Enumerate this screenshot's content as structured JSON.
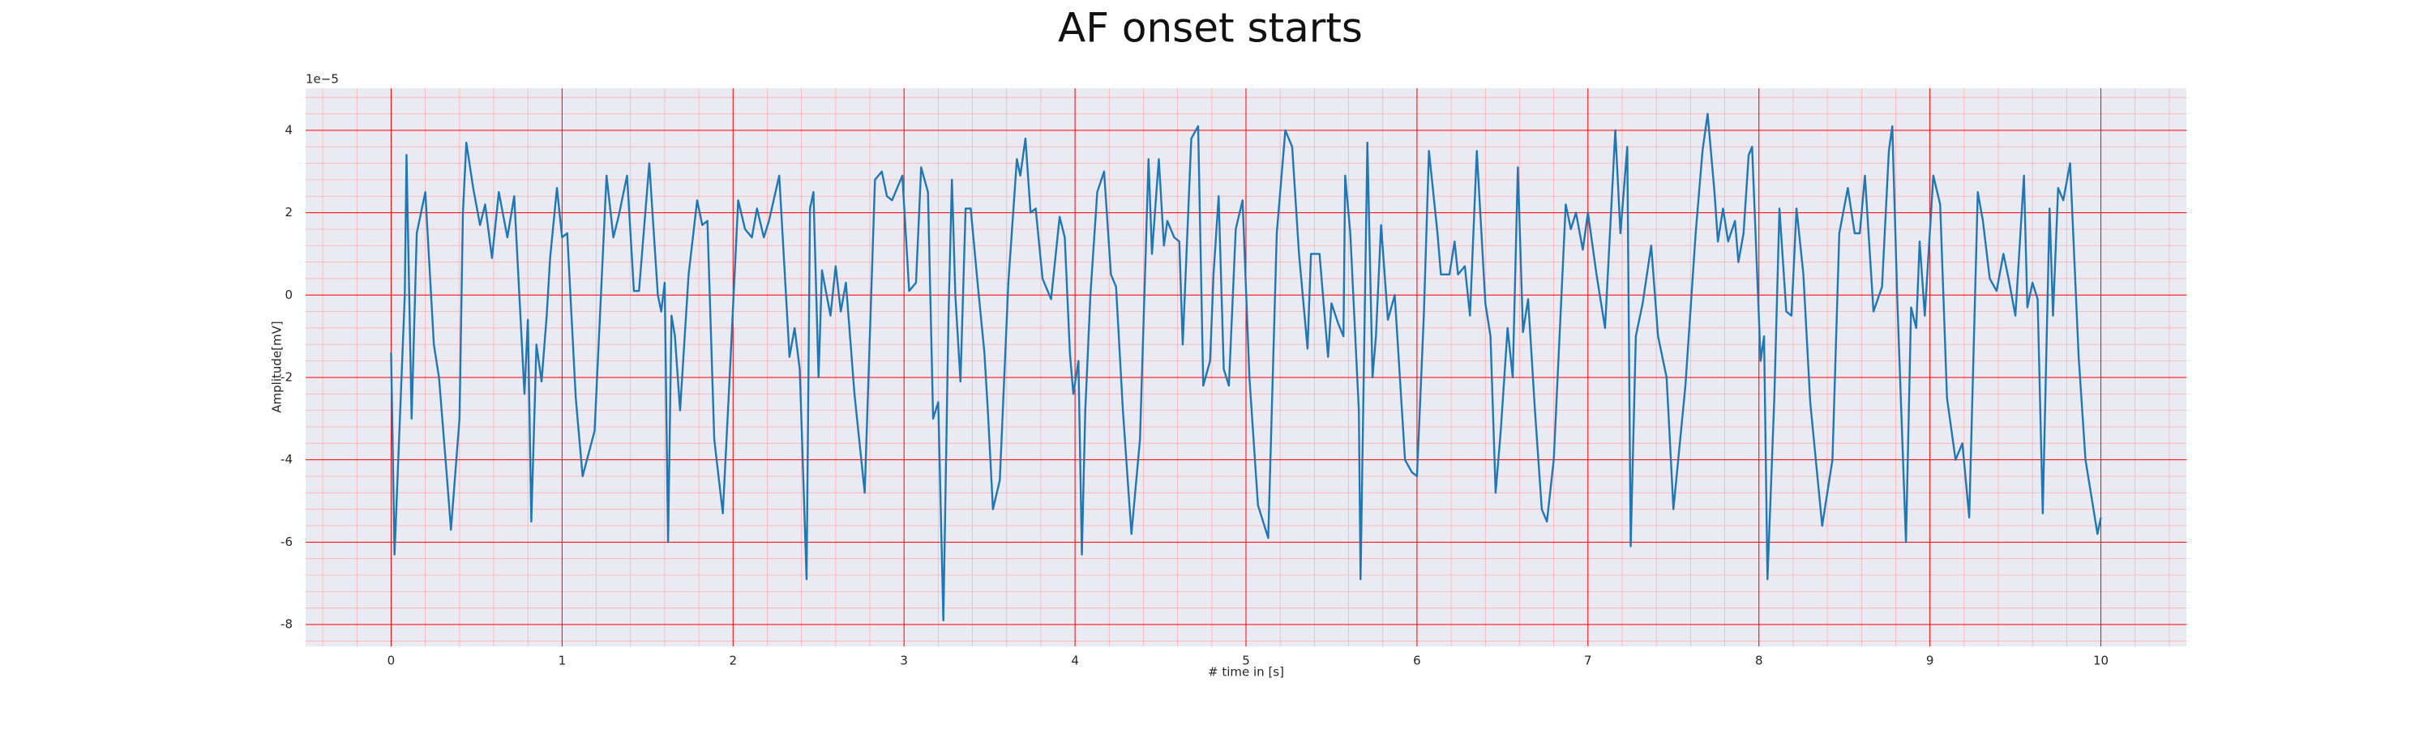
{
  "chart_data": {
    "type": "line",
    "title": "AF onset starts",
    "x_label": "# time in [s]",
    "y_label": "Amplitude[mV]",
    "y_offset_label": "1e−5",
    "x": [
      0,
      0.02,
      0.08,
      0.09,
      0.12,
      0.15,
      0.2,
      0.25,
      0.28,
      0.33,
      0.35,
      0.4,
      0.42,
      0.44,
      0.48,
      0.52,
      0.55,
      0.59,
      0.63,
      0.68,
      0.72,
      0.78,
      0.8,
      0.82,
      0.85,
      0.88,
      0.91,
      0.93,
      0.97,
      1.0,
      1.03,
      1.08,
      1.12,
      1.19,
      1.26,
      1.3,
      1.33,
      1.38,
      1.42,
      1.45,
      1.51,
      1.56,
      1.58,
      1.6,
      1.62,
      1.64,
      1.66,
      1.69,
      1.74,
      1.79,
      1.82,
      1.85,
      1.89,
      1.94,
      1.98,
      2.03,
      2.07,
      2.11,
      2.14,
      2.18,
      2.21,
      2.27,
      2.33,
      2.36,
      2.39,
      2.43,
      2.45,
      2.47,
      2.5,
      2.52,
      2.57,
      2.6,
      2.63,
      2.66,
      2.71,
      2.77,
      2.83,
      2.87,
      2.9,
      2.93,
      2.99,
      3.03,
      3.07,
      3.1,
      3.14,
      3.17,
      3.2,
      3.23,
      3.26,
      3.28,
      3.3,
      3.33,
      3.36,
      3.39,
      3.43,
      3.47,
      3.49,
      3.52,
      3.56,
      3.61,
      3.66,
      3.68,
      3.71,
      3.74,
      3.77,
      3.81,
      3.86,
      3.91,
      3.94,
      3.97,
      3.99,
      4.02,
      4.04,
      4.06,
      4.09,
      4.13,
      4.17,
      4.21,
      4.24,
      4.28,
      4.33,
      4.38,
      4.43,
      4.45,
      4.49,
      4.52,
      4.54,
      4.58,
      4.61,
      4.63,
      4.68,
      4.72,
      4.75,
      4.79,
      4.81,
      4.84,
      4.87,
      4.9,
      4.94,
      4.98,
      5.02,
      5.07,
      5.13,
      5.18,
      5.23,
      5.27,
      5.31,
      5.36,
      5.38,
      5.43,
      5.48,
      5.5,
      5.54,
      5.57,
      5.58,
      5.61,
      5.66,
      5.67,
      5.71,
      5.74,
      5.76,
      5.79,
      5.83,
      5.87,
      5.93,
      5.97,
      6.0,
      6.04,
      6.07,
      6.12,
      6.14,
      6.19,
      6.22,
      6.24,
      6.28,
      6.31,
      6.35,
      6.4,
      6.43,
      6.46,
      6.49,
      6.53,
      6.56,
      6.59,
      6.62,
      6.65,
      6.69,
      6.73,
      6.76,
      6.8,
      6.87,
      6.9,
      6.93,
      6.97,
      7.0,
      7.05,
      7.1,
      7.16,
      7.19,
      7.23,
      7.25,
      7.28,
      7.32,
      7.37,
      7.41,
      7.46,
      7.5,
      7.57,
      7.63,
      7.67,
      7.7,
      7.74,
      7.76,
      7.79,
      7.82,
      7.86,
      7.88,
      7.91,
      7.94,
      7.96,
      8.01,
      8.03,
      8.05,
      8.09,
      8.12,
      8.16,
      8.19,
      8.22,
      8.26,
      8.3,
      8.37,
      8.43,
      8.47,
      8.52,
      8.56,
      8.59,
      8.62,
      8.67,
      8.72,
      8.76,
      8.78,
      8.81,
      8.86,
      8.89,
      8.92,
      8.94,
      8.97,
      9.02,
      9.06,
      9.1,
      9.15,
      9.19,
      9.23,
      9.28,
      9.31,
      9.35,
      9.39,
      9.43,
      9.46,
      9.5,
      9.55,
      9.57,
      9.6,
      9.63,
      9.66,
      9.7,
      9.72,
      9.75,
      9.78,
      9.82,
      9.87,
      9.91,
      9.98,
      10.0
    ],
    "series": [
      {
        "color": "#1f77b4",
        "values": [
          -1.4,
          -6.3,
          0,
          3.4,
          -3.0,
          1.5,
          2.5,
          -1.2,
          -2.0,
          -4.6,
          -5.7,
          -3.0,
          2.0,
          3.7,
          2.6,
          1.7,
          2.2,
          0.9,
          2.5,
          1.4,
          2.4,
          -2.4,
          -0.6,
          -5.5,
          -1.2,
          -2.1,
          -0.5,
          0.9,
          2.6,
          1.4,
          1.5,
          -2.5,
          -4.4,
          -3.3,
          2.9,
          1.4,
          1.9,
          2.9,
          0.1,
          0.1,
          3.2,
          0.0,
          -0.4,
          0.3,
          -6.0,
          -0.5,
          -1.0,
          -2.8,
          0.5,
          2.3,
          1.7,
          1.8,
          -3.5,
          -5.3,
          -2.0,
          2.3,
          1.6,
          1.4,
          2.1,
          1.4,
          1.8,
          2.9,
          -1.5,
          -0.8,
          -1.8,
          -6.9,
          2.1,
          2.5,
          -2.0,
          0.6,
          -0.5,
          0.7,
          -0.4,
          0.3,
          -2.4,
          -4.8,
          2.8,
          3.0,
          2.4,
          2.3,
          2.9,
          0.1,
          0.3,
          3.1,
          2.5,
          -3.0,
          -2.6,
          -7.9,
          -0.5,
          2.8,
          0,
          -2.1,
          2.1,
          2.1,
          0.3,
          -1.4,
          -2.8,
          -5.2,
          -4.5,
          0.3,
          3.3,
          2.9,
          3.8,
          2.0,
          2.1,
          0.4,
          -0.1,
          1.9,
          1.4,
          -1.4,
          -2.4,
          -1.6,
          -6.3,
          -2.8,
          0,
          2.5,
          3.0,
          0.5,
          0.2,
          -2.8,
          -5.8,
          -3.5,
          3.3,
          1.0,
          3.3,
          1.2,
          1.8,
          1.4,
          1.3,
          -1.2,
          3.8,
          4.1,
          -2.2,
          -1.6,
          0.5,
          2.4,
          -1.8,
          -2.2,
          1.6,
          2.3,
          -2.0,
          -5.1,
          -5.9,
          1.5,
          4.0,
          3.6,
          1.0,
          -1.3,
          1.0,
          1.0,
          -1.5,
          -0.2,
          -0.7,
          -1.0,
          2.9,
          1.5,
          -2.8,
          -6.9,
          3.7,
          -2.0,
          -1.0,
          1.7,
          -0.6,
          0,
          -4.0,
          -4.3,
          -4.4,
          -0.5,
          3.5,
          1.5,
          0.5,
          0.5,
          1.3,
          0.5,
          0.7,
          -0.5,
          3.5,
          -0.2,
          -1.0,
          -4.8,
          -3.3,
          -0.8,
          -2.0,
          3.1,
          -0.9,
          -0.1,
          -2.8,
          -5.2,
          -5.5,
          -4.0,
          2.2,
          1.6,
          2.0,
          1.1,
          2.0,
          0.5,
          -0.8,
          4.0,
          1.5,
          3.6,
          -6.1,
          -1.0,
          -0.2,
          1.2,
          -1.0,
          -2.0,
          -5.2,
          -2.2,
          1.5,
          3.5,
          4.4,
          2.5,
          1.3,
          2.1,
          1.3,
          1.8,
          0.8,
          1.5,
          3.4,
          3.6,
          -1.6,
          -1.0,
          -6.9,
          -2.5,
          2.1,
          -0.4,
          -0.5,
          2.1,
          0.5,
          -2.6,
          -5.6,
          -4.0,
          1.5,
          2.6,
          1.5,
          1.5,
          2.9,
          -0.4,
          0.2,
          3.5,
          4.1,
          -0.2,
          -6.0,
          -0.3,
          -0.8,
          1.3,
          -0.5,
          2.9,
          2.2,
          -2.5,
          -4.0,
          -3.6,
          -5.4,
          2.5,
          1.8,
          0.4,
          0.1,
          1.0,
          0.4,
          -0.5,
          2.9,
          -0.3,
          0.3,
          -0.1,
          -5.3,
          2.1,
          -0.5,
          2.6,
          2.3,
          3.2,
          -1.5,
          -4.0,
          -5.8,
          -5.4
        ]
      }
    ],
    "xlim": [
      -0.5,
      10.5
    ],
    "ylim": [
      -8.53,
      5.02
    ],
    "xticks": [
      0,
      1,
      2,
      3,
      4,
      5,
      6,
      7,
      8,
      9,
      10
    ],
    "yticks": [
      -8,
      -6,
      -4,
      -2,
      0,
      2,
      4
    ],
    "grid": true,
    "grid_color": "#ff0000",
    "minor_grid": true,
    "minor_grid_color": "#ffb0b0",
    "minor_divisions": 5,
    "background": "#eaeaf2"
  }
}
